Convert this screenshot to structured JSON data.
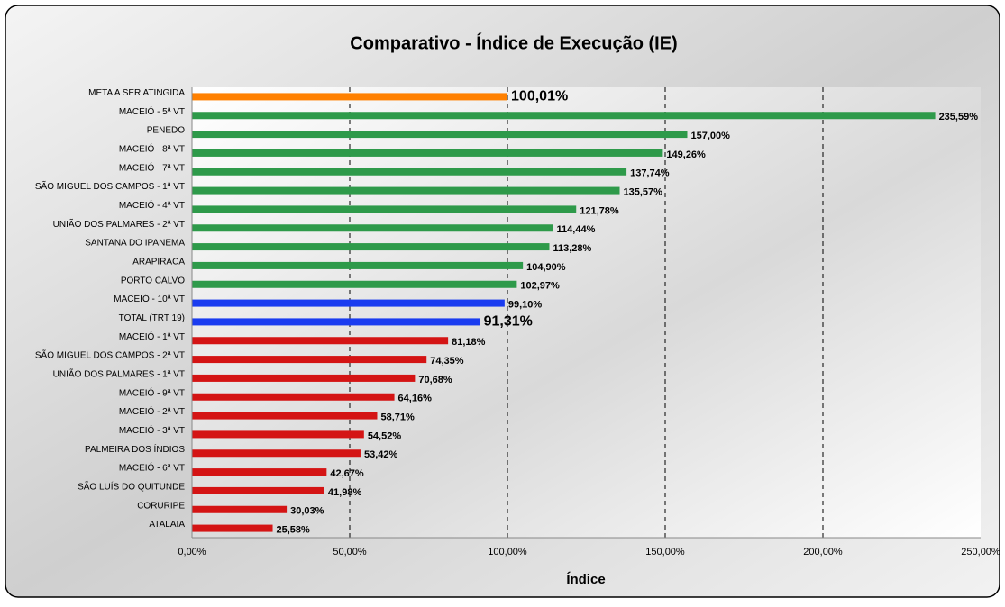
{
  "chart_data": {
    "type": "hbar",
    "title": "Comparativo - Índice de Execução (IE)",
    "x_label": "Índice",
    "categories": [
      "META A SER ATINGIDA",
      "MACEIÓ - 5ª VT",
      "PENEDO",
      "MACEIÓ - 8ª VT",
      "MACEIÓ - 7ª VT",
      "SÃO MIGUEL DOS CAMPOS - 1ª VT",
      "MACEIÓ - 4ª VT",
      "UNIÃO DOS PALMARES - 2ª VT",
      "SANTANA DO IPANEMA",
      "ARAPIRACA",
      "PORTO CALVO",
      "MACEIÓ - 10ª VT",
      "TOTAL (TRT 19)",
      "MACEIÓ - 1ª VT",
      "SÃO MIGUEL DOS CAMPOS - 2ª VT",
      "UNIÃO DOS PALMARES - 1ª VT",
      "MACEIÓ - 9ª VT",
      "MACEIÓ - 2ª VT",
      "MACEIÓ - 3ª VT",
      "PALMEIRA DOS ÍNDIOS",
      "MACEIÓ - 6ª VT",
      "SÃO LUÍS DO QUITUNDE",
      "CORURIPE",
      "ATALAIA"
    ],
    "values": [
      100.01,
      235.59,
      157.0,
      149.26,
      137.74,
      135.57,
      121.78,
      114.44,
      113.28,
      104.9,
      102.97,
      99.1,
      91.31,
      81.18,
      74.35,
      70.68,
      64.16,
      58.71,
      54.52,
      53.42,
      42.67,
      41.98,
      30.03,
      25.58
    ],
    "value_labels": [
      "100,01%",
      "235,59%",
      "157,00%",
      "149,26%",
      "137,74%",
      "135,57%",
      "121,78%",
      "114,44%",
      "113,28%",
      "104,90%",
      "102,97%",
      "99,10%",
      "91,31%",
      "81,18%",
      "74,35%",
      "70,68%",
      "64,16%",
      "58,71%",
      "54,52%",
      "53,42%",
      "42,67%",
      "41,98%",
      "30,03%",
      "25,58%"
    ],
    "colors": [
      "#ff8000",
      "#2e9a4a",
      "#2e9a4a",
      "#2e9a4a",
      "#2e9a4a",
      "#2e9a4a",
      "#2e9a4a",
      "#2e9a4a",
      "#2e9a4a",
      "#2e9a4a",
      "#2e9a4a",
      "#1a3cf0",
      "#1a3cf0",
      "#d41414",
      "#d41414",
      "#d41414",
      "#d41414",
      "#d41414",
      "#d41414",
      "#d41414",
      "#d41414",
      "#d41414",
      "#d41414",
      "#d41414"
    ],
    "xlim": [
      0,
      250
    ],
    "xticks": [
      {
        "value": 0,
        "label": "0,00%"
      },
      {
        "value": 50,
        "label": "50,00%"
      },
      {
        "value": 100,
        "label": "100,00%"
      },
      {
        "value": 150,
        "label": "150,00%"
      },
      {
        "value": 200,
        "label": "200,00%"
      },
      {
        "value": 250,
        "label": "250,00%"
      }
    ],
    "grid": true
  }
}
